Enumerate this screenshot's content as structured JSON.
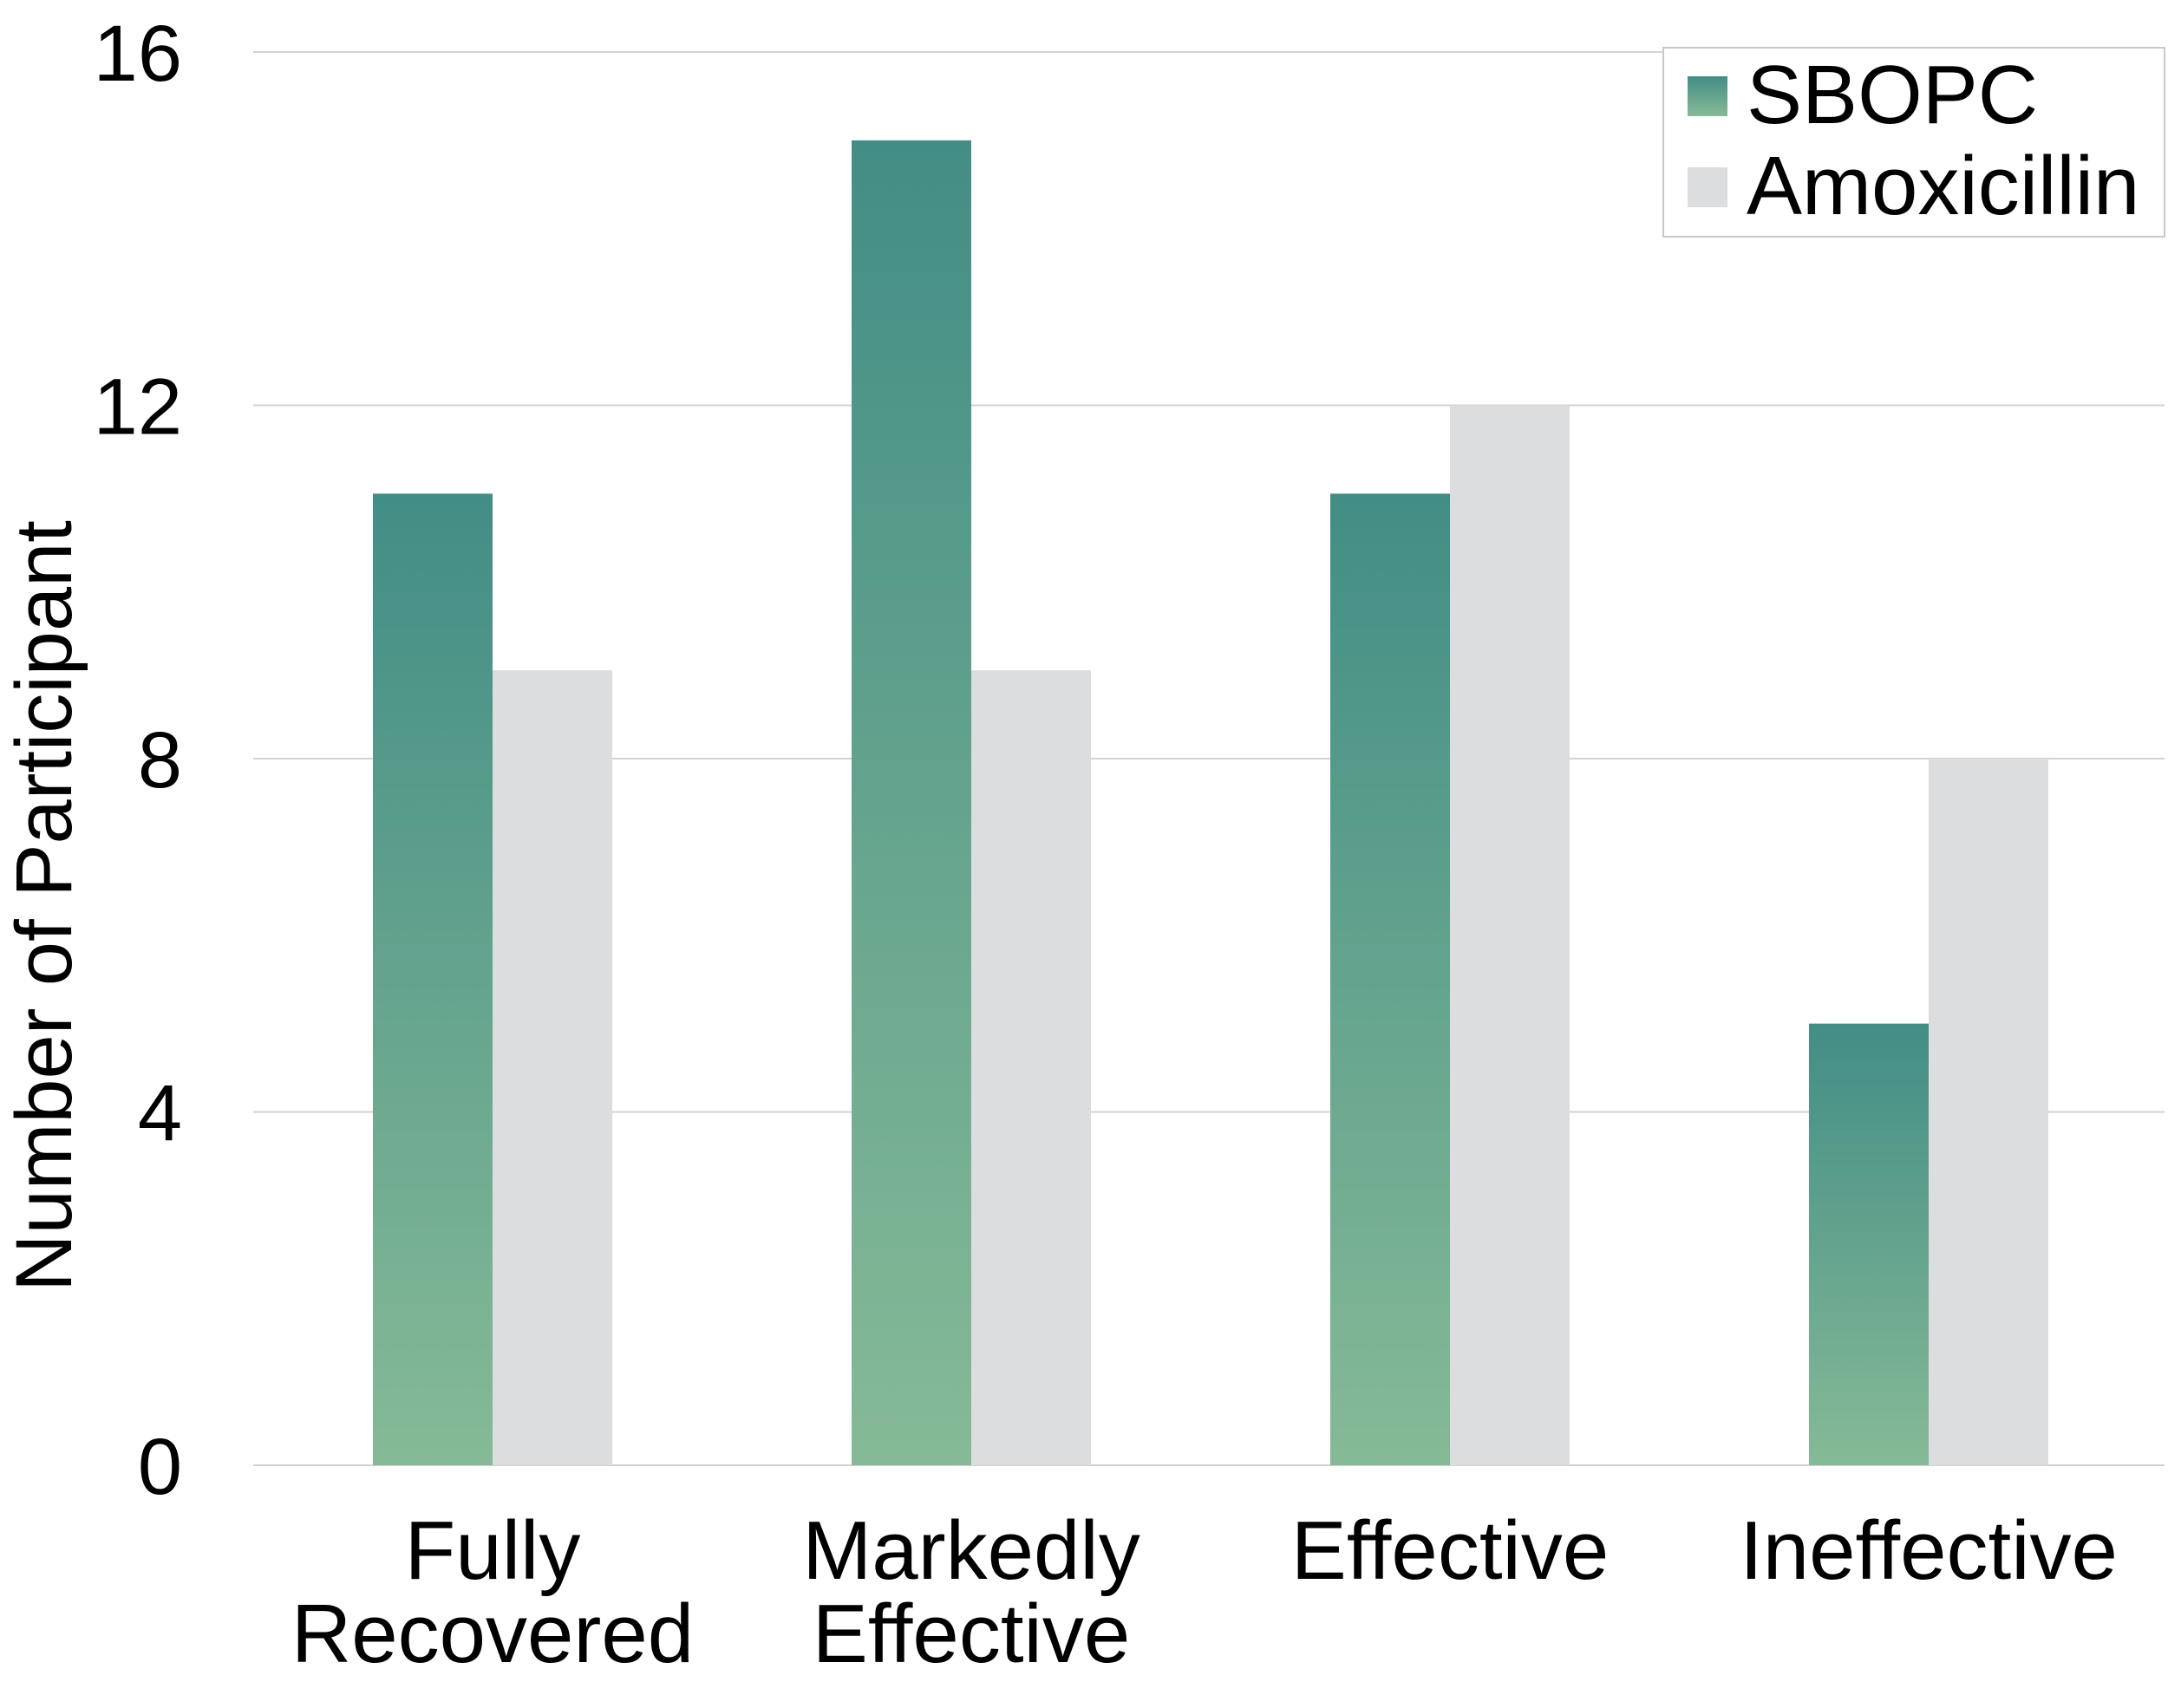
{
  "chart_data": {
    "type": "bar",
    "categories": [
      [
        "Fully",
        "Recovered"
      ],
      [
        "Markedly",
        "Effective"
      ],
      [
        "Effective"
      ],
      [
        "Ineffective"
      ]
    ],
    "series": [
      {
        "name": "SBOPC",
        "values": [
          11,
          15,
          11,
          5
        ],
        "color_top": "#428d85",
        "color_bottom": "#86ba97"
      },
      {
        "name": "Amoxicillin",
        "values": [
          9,
          9,
          12,
          8
        ],
        "color": "#dcdddf"
      }
    ],
    "title": "",
    "xlabel": "",
    "ylabel": "Number of Participant",
    "ylim": [
      0,
      16
    ],
    "yticks": [
      0,
      4,
      8,
      12,
      16
    ],
    "grid": true,
    "legend_position": "top-right"
  }
}
